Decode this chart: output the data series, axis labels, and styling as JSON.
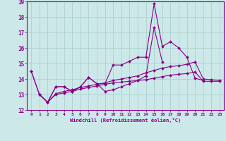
{
  "xlabel": "Windchill (Refroidissement éolien,°C)",
  "xlim": [
    -0.5,
    23.5
  ],
  "ylim": [
    12,
    19
  ],
  "yticks": [
    12,
    13,
    14,
    15,
    16,
    17,
    18,
    19
  ],
  "xticks": [
    0,
    1,
    2,
    3,
    4,
    5,
    6,
    7,
    8,
    9,
    10,
    11,
    12,
    13,
    14,
    15,
    16,
    17,
    18,
    19,
    20,
    21,
    22,
    23
  ],
  "bg_color": "#cce8e8",
  "grid_color": "#aacccc",
  "line_color": "#880088",
  "series1_x": [
    0,
    1,
    2,
    3,
    4,
    5,
    6,
    7,
    8,
    9,
    10,
    11,
    12,
    13,
    14,
    15,
    16,
    17,
    18,
    19,
    20,
    21
  ],
  "series1_y": [
    14.5,
    13.0,
    12.5,
    13.5,
    13.5,
    13.2,
    13.5,
    14.1,
    13.7,
    13.7,
    14.9,
    14.9,
    15.15,
    15.4,
    15.4,
    18.85,
    16.1,
    16.4,
    16.0,
    15.4,
    14.05,
    13.9
  ],
  "series2_x": [
    0,
    1,
    2,
    3,
    4,
    5,
    6,
    7,
    8,
    9,
    10,
    11,
    12,
    13,
    14,
    15,
    16
  ],
  "series2_y": [
    14.5,
    13.0,
    12.5,
    13.5,
    13.5,
    13.2,
    13.5,
    14.1,
    13.7,
    13.2,
    13.3,
    13.5,
    13.7,
    13.9,
    14.2,
    17.3,
    15.1
  ],
  "series3_x": [
    1,
    2,
    3,
    4,
    5,
    6,
    7,
    8,
    9,
    10,
    11,
    12,
    13,
    14,
    15,
    16,
    17,
    18,
    19,
    20,
    21,
    22,
    23
  ],
  "series3_y": [
    13.0,
    12.5,
    13.05,
    13.2,
    13.3,
    13.45,
    13.55,
    13.65,
    13.75,
    13.9,
    14.0,
    14.1,
    14.2,
    14.4,
    14.55,
    14.7,
    14.8,
    14.85,
    14.95,
    15.1,
    14.0,
    13.95,
    13.9
  ],
  "series4_x": [
    1,
    2,
    3,
    4,
    5,
    6,
    7,
    8,
    9,
    10,
    11,
    12,
    13,
    14,
    15,
    16,
    17,
    18,
    19,
    20,
    21,
    22,
    23
  ],
  "series4_y": [
    13.0,
    12.5,
    13.0,
    13.1,
    13.2,
    13.35,
    13.45,
    13.55,
    13.65,
    13.75,
    13.8,
    13.85,
    13.9,
    13.95,
    14.05,
    14.15,
    14.25,
    14.3,
    14.35,
    14.45,
    13.85,
    13.85,
    13.85
  ]
}
